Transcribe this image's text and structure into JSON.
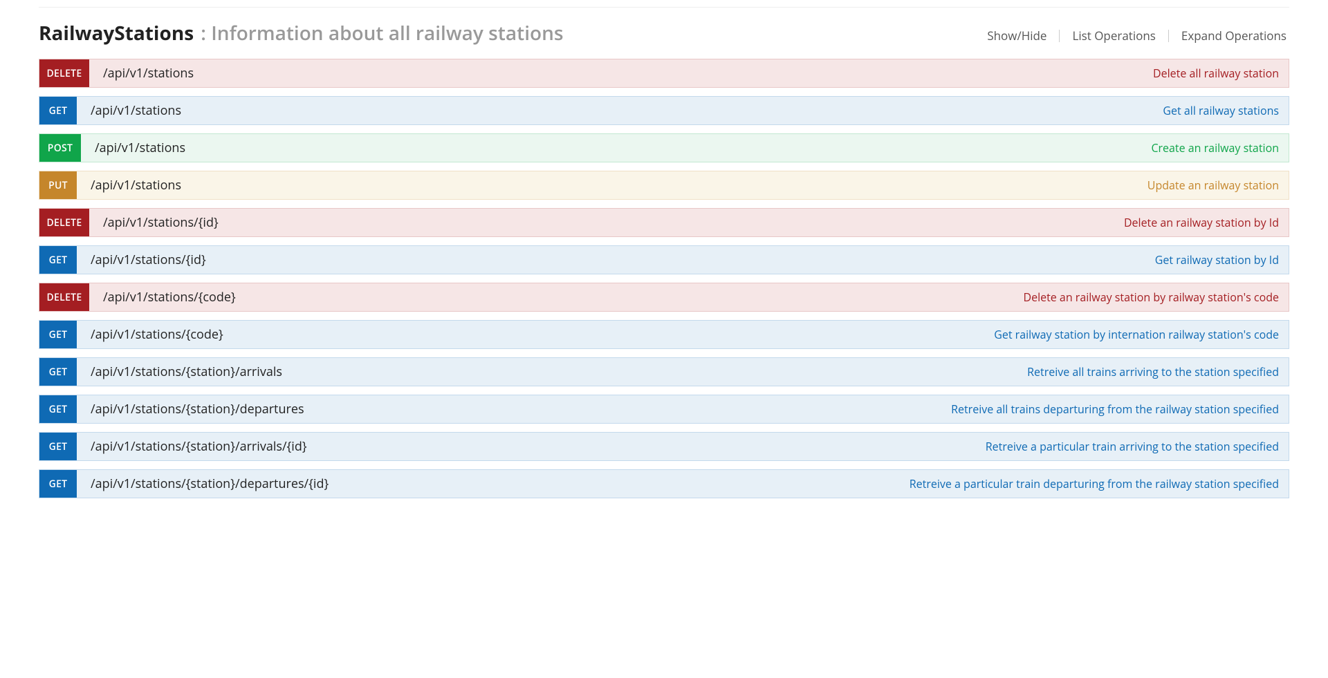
{
  "header": {
    "title": "RailwayStations",
    "subtitle": ": Information about all railway stations",
    "actions": {
      "showhide": "Show/Hide",
      "list": "List Operations",
      "expand": "Expand Operations"
    }
  },
  "styles": {
    "methods": {
      "DELETE": {
        "badge_bg": "#a41e22",
        "row_bg": "#f6e6e6",
        "row_border": "#e8c7c7",
        "desc_color": "#a41e22",
        "badge_width": 72
      },
      "GET": {
        "badge_bg": "#0f6ab4",
        "row_bg": "#e7f0f7",
        "row_border": "#c3d9ec",
        "desc_color": "#0f6ab4",
        "badge_width": 54
      },
      "POST": {
        "badge_bg": "#10a54a",
        "row_bg": "#ebf7f0",
        "row_border": "#c3e8d1",
        "desc_color": "#10a54a",
        "badge_width": 60
      },
      "PUT": {
        "badge_bg": "#c5862b",
        "row_bg": "#faf5e8",
        "row_border": "#f0e0c7",
        "desc_color": "#c5862b",
        "badge_width": 54
      }
    }
  },
  "operations": [
    {
      "method": "DELETE",
      "path": "/api/v1/stations",
      "description": "Delete all railway station"
    },
    {
      "method": "GET",
      "path": "/api/v1/stations",
      "description": "Get all railway stations"
    },
    {
      "method": "POST",
      "path": "/api/v1/stations",
      "description": "Create an railway station"
    },
    {
      "method": "PUT",
      "path": "/api/v1/stations",
      "description": "Update an railway station"
    },
    {
      "method": "DELETE",
      "path": "/api/v1/stations/{id}",
      "description": "Delete an railway station by Id"
    },
    {
      "method": "GET",
      "path": "/api/v1/stations/{id}",
      "description": "Get railway station by Id"
    },
    {
      "method": "DELETE",
      "path": "/api/v1/stations/{code}",
      "description": "Delete an railway station by railway station's code"
    },
    {
      "method": "GET",
      "path": "/api/v1/stations/{code}",
      "description": "Get railway station by internation railway station's code"
    },
    {
      "method": "GET",
      "path": "/api/v1/stations/{station}/arrivals",
      "description": "Retreive all trains arriving to the station specified"
    },
    {
      "method": "GET",
      "path": "/api/v1/stations/{station}/departures",
      "description": "Retreive all trains departuring from the railway station specified"
    },
    {
      "method": "GET",
      "path": "/api/v1/stations/{station}/arrivals/{id}",
      "description": "Retreive a particular train arriving to the station specified"
    },
    {
      "method": "GET",
      "path": "/api/v1/stations/{station}/departures/{id}",
      "description": "Retreive a particular train departuring from the railway station specified"
    }
  ]
}
